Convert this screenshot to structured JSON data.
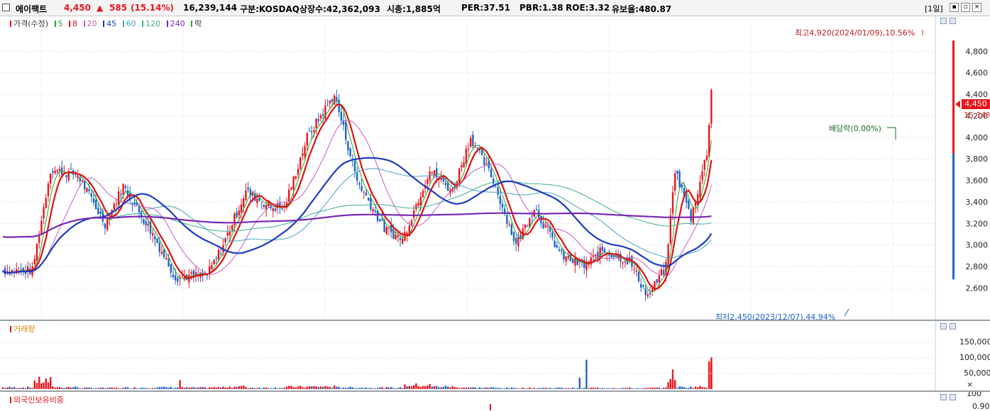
{
  "header": {
    "name": "에이팩트",
    "price": "4,450",
    "change_arrow": "▲",
    "change": "585",
    "change_pct": "(15.14%)",
    "volume": "16,239,144",
    "market": "구분:KOSDAQ",
    "shares": "상장수:42,362,093",
    "market_cap": "시총:1,885억",
    "per": "PER:37.51",
    "pbr": "PBR:1.38",
    "roe": "ROE:3.32",
    "retention": "유보율:480.87",
    "period": "[1일]"
  },
  "legend": {
    "price": "가격(수정)",
    "ma5": "5",
    "ma8": "8",
    "ma20": "20",
    "ma45": "45",
    "ma60": "60",
    "ma120": "120",
    "ma240": "240",
    "drop": "락"
  },
  "price_axis": {
    "ticks": [
      "4,800",
      "4,600",
      "4,400",
      "4,200",
      "4,000",
      "3,800",
      "3,600",
      "3,400",
      "3,200",
      "3,000",
      "2,800",
      "2,600"
    ],
    "current": "4,450",
    "current_pct": "15.14%"
  },
  "annotations": {
    "high": "최고4,920(2024/01/09),10.56%",
    "low": "최저2,450(2023/12/07),44.94%",
    "dividend": "배당락(0.00%)"
  },
  "volume_panel": {
    "title": "거래량",
    "ticks": [
      "150,000",
      "100,000",
      "50,000"
    ],
    "unit": "× 100"
  },
  "foreign_panel": {
    "title": "외국인보유비중",
    "tick": "0.90"
  },
  "colors": {
    "up": "#e8151d",
    "down": "#1e64c8",
    "ma5": "#2aa52a",
    "ma8": "#e01010",
    "ma20": "#c060c0",
    "ma45": "#1a3cc0",
    "ma60": "#4aa0c0",
    "ma120": "#3cae8c",
    "ma240": "#7a28b4"
  },
  "chart_data": {
    "type": "candlestick",
    "y_range": [
      2300,
      5000
    ],
    "high": {
      "value": 4920,
      "date": "2024/01/09"
    },
    "low": {
      "value": 2450,
      "date": "2023/12/07"
    },
    "segments": [
      {
        "start": 2760,
        "end": 2760,
        "days": 14,
        "vol": 6
      },
      {
        "start": 2760,
        "end": 3700,
        "days": 8,
        "vol": 30
      },
      {
        "start": 3700,
        "end": 3650,
        "days": 12,
        "vol": 7
      },
      {
        "start": 3650,
        "end": 3200,
        "days": 12,
        "vol": 4
      },
      {
        "start": 3200,
        "end": 3550,
        "days": 8,
        "vol": 4
      },
      {
        "start": 3550,
        "end": 3100,
        "days": 13,
        "vol": 5
      },
      {
        "start": 3100,
        "end": 2700,
        "days": 10,
        "vol": 6
      },
      {
        "start": 2700,
        "end": 2720,
        "days": 14,
        "vol": 5
      },
      {
        "start": 2720,
        "end": 3000,
        "days": 7,
        "vol": 6
      },
      {
        "start": 3000,
        "end": 3500,
        "days": 10,
        "vol": 9
      },
      {
        "start": 3500,
        "end": 3350,
        "days": 11,
        "vol": 5
      },
      {
        "start": 3350,
        "end": 3350,
        "days": 6,
        "vol": 5
      },
      {
        "start": 3350,
        "end": 4000,
        "days": 10,
        "vol": 8
      },
      {
        "start": 4000,
        "end": 4400,
        "days": 12,
        "vol": 9
      },
      {
        "start": 4400,
        "end": 3600,
        "days": 10,
        "vol": 6
      },
      {
        "start": 3600,
        "end": 3150,
        "days": 12,
        "vol": 5
      },
      {
        "start": 3150,
        "end": 3050,
        "days": 8,
        "vol": 5
      },
      {
        "start": 3050,
        "end": 3700,
        "days": 12,
        "vol": 14
      },
      {
        "start": 3700,
        "end": 3500,
        "days": 10,
        "vol": 9
      },
      {
        "start": 3500,
        "end": 4000,
        "days": 8,
        "vol": 6
      },
      {
        "start": 4000,
        "end": 3600,
        "days": 10,
        "vol": 5
      },
      {
        "start": 3600,
        "end": 3000,
        "days": 10,
        "vol": 4
      },
      {
        "start": 3000,
        "end": 3350,
        "days": 8,
        "vol": 4
      },
      {
        "start": 3350,
        "end": 2900,
        "days": 12,
        "vol": 4
      },
      {
        "start": 2900,
        "end": 2800,
        "days": 10,
        "vol": 4
      },
      {
        "start": 2800,
        "end": 2950,
        "days": 8,
        "vol": 4
      },
      {
        "start": 2950,
        "end": 2850,
        "days": 12,
        "vol": 4
      },
      {
        "start": 2850,
        "end": 2520,
        "days": 8,
        "vol": 3
      },
      {
        "start": 2520,
        "end": 2800,
        "days": 8,
        "vol": 4
      },
      {
        "start": 2800,
        "end": 3700,
        "days": 4,
        "vol": 50
      },
      {
        "start": 3700,
        "end": 3250,
        "days": 7,
        "vol": 7
      },
      {
        "start": 3250,
        "end": 3850,
        "days": 7,
        "vol": 8
      },
      {
        "start": 3850,
        "end": 4450,
        "days": 2,
        "vol": 160
      }
    ],
    "volume_spikes": [
      {
        "x_index": 78,
        "value": 55000
      },
      {
        "x_index": 257,
        "value": 180000
      },
      {
        "x_index": 254,
        "value": 70000
      },
      {
        "x_index": 370,
        "value": 130000
      },
      {
        "x_index": 371,
        "value": 75000
      },
      {
        "x_index": 404,
        "value": 160000
      }
    ],
    "moving_average_windows": [
      5,
      8,
      20,
      45,
      60,
      120,
      240
    ]
  }
}
